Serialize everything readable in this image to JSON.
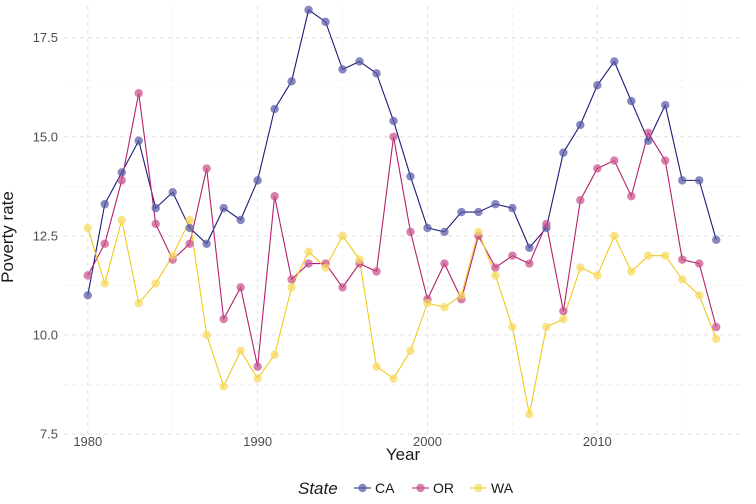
{
  "chart_data": {
    "type": "line",
    "xlabel": "Year",
    "ylabel": "Poverty rate",
    "xlim": [
      1979.6,
      1982.4
    ],
    "xlim_full": [
      1978.6,
      2018.4
    ],
    "ylim": [
      7.5,
      18.3
    ],
    "x_ticks": [
      1980,
      1990,
      2000,
      2010
    ],
    "x_tick_labels": [
      "1980",
      "1990",
      "2000",
      "2010"
    ],
    "y_ticks": [
      7.5,
      10.0,
      12.5,
      15.0,
      17.5
    ],
    "y_tick_labels": [
      "7.5",
      "10.0",
      "12.5",
      "15.0",
      "17.5"
    ],
    "grid": true,
    "legend": {
      "title": "State",
      "position": "bottom"
    },
    "x": [
      1980,
      1981,
      1982,
      1983,
      1984,
      1985,
      1986,
      1987,
      1988,
      1989,
      1990,
      1991,
      1992,
      1993,
      1994,
      1995,
      1996,
      1997,
      1998,
      1999,
      2000,
      2001,
      2002,
      2003,
      2004,
      2005,
      2006,
      2007,
      2008,
      2009,
      2010,
      2011,
      2012,
      2013,
      2014,
      2015,
      2016,
      2017
    ],
    "series": [
      {
        "name": "CA",
        "color": "#1b1b7a",
        "point_color": "#5a5aa8",
        "values": [
          11.0,
          13.3,
          14.1,
          14.9,
          13.2,
          13.6,
          12.7,
          12.3,
          13.2,
          12.9,
          13.9,
          15.7,
          16.4,
          18.2,
          17.9,
          16.7,
          16.9,
          16.6,
          15.4,
          14.0,
          12.7,
          12.6,
          13.1,
          13.1,
          13.3,
          13.2,
          12.2,
          12.7,
          14.6,
          15.3,
          16.3,
          16.9,
          15.9,
          14.9,
          15.8,
          13.9,
          13.9,
          12.4
        ]
      },
      {
        "name": "OR",
        "color": "#b5206e",
        "point_color": "#c9508c",
        "values": [
          11.5,
          12.3,
          13.9,
          16.1,
          12.8,
          11.9,
          12.3,
          14.2,
          10.4,
          11.2,
          9.2,
          13.5,
          11.4,
          11.8,
          11.8,
          11.2,
          11.8,
          11.6,
          15.0,
          12.6,
          10.9,
          11.8,
          10.9,
          12.5,
          11.7,
          12.0,
          11.8,
          12.8,
          10.6,
          13.4,
          14.2,
          14.4,
          13.5,
          15.1,
          14.4,
          11.9,
          11.8,
          10.2
        ]
      },
      {
        "name": "WA",
        "color": "#f2c91d",
        "point_color": "#f7d85e",
        "values": [
          12.7,
          11.3,
          12.9,
          10.8,
          11.3,
          12.0,
          12.9,
          10.0,
          8.7,
          9.6,
          8.9,
          9.5,
          11.2,
          12.1,
          11.7,
          12.5,
          11.9,
          9.2,
          8.9,
          9.6,
          10.8,
          10.7,
          11.0,
          12.6,
          11.5,
          10.2,
          8.0,
          10.2,
          10.4,
          11.7,
          11.5,
          12.5,
          11.6,
          12.0,
          12.0,
          11.4,
          11.0,
          9.9
        ]
      }
    ]
  }
}
